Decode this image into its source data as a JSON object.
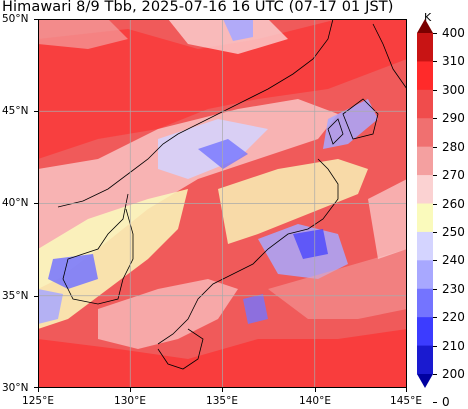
{
  "title": "Himawari 8/9 Tbb, 2025-07-16 16 UTC (07-17 01 JST)",
  "map": {
    "lon_range": [
      125,
      145
    ],
    "lat_range": [
      30,
      50
    ],
    "grid": true,
    "lon_ticks": [
      "125°E",
      "130°E",
      "135°E",
      "140°E",
      "145°E"
    ],
    "lat_ticks": [
      "50°N",
      "45°N",
      "40°N",
      "35°N",
      "30°N"
    ]
  },
  "colorbar": {
    "unit": "K",
    "labels": [
      "400",
      "310",
      "300",
      "290",
      "280",
      "270",
      "260",
      "250",
      "240",
      "230",
      "220",
      "210",
      "200",
      "0"
    ],
    "colors": [
      "#7a0000",
      "#c81414",
      "#ff2a2a",
      "#f04c4c",
      "#f07070",
      "#f4a0a0",
      "#fbd2d2",
      "#fafabc",
      "#d4d4ff",
      "#a8a8ff",
      "#7474ff",
      "#3c3cff",
      "#1a1ad0",
      "#0000a0"
    ]
  }
}
